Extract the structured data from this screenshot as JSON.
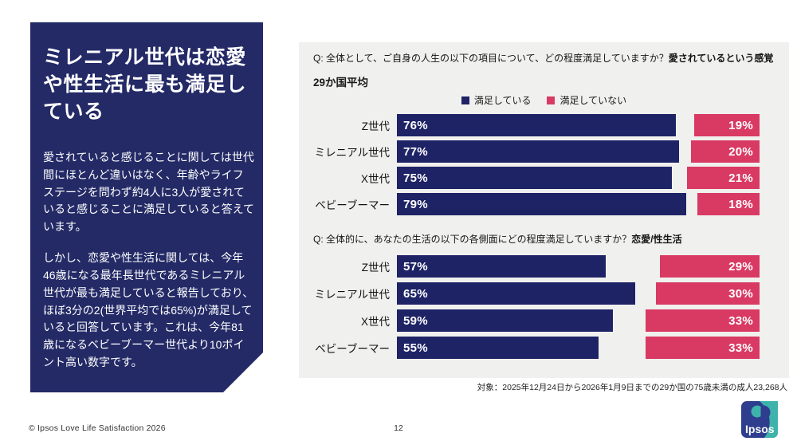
{
  "sidebar": {
    "title": "ミレニアル世代は恋愛や性生活に最も満足している",
    "paragraphs": [
      "愛されていると感じることに関しては世代間にほとんど違いはなく、年齢やライフステージを問わず約4人に3人が愛されていると感じることに満足していると答えています。",
      "しかし、恋愛や性生活に関しては、今年46歳になる最年長世代であるミレニアル世代が最も満足していると報告しており、ほぼ3分の2(世界平均では65%)が満足していると回答しています。これは、今年81歳になるベビーブーマー世代より10ポイント高い数字です。"
    ]
  },
  "panel": {
    "subtitle": "29か国平均",
    "legend": [
      {
        "label": "満足している",
        "color": "#1e2366"
      },
      {
        "label": "満足していない",
        "color": "#d93a63"
      }
    ]
  },
  "chart_data": [
    {
      "type": "bar",
      "orientation": "horizontal",
      "title": "Q: 全体として、ご自身の人生の以下の項目について、どの程度満足していますか？",
      "title_bold": "愛されているという感覚",
      "categories": [
        "Z世代",
        "ミレニアル世代",
        "X世代",
        "ベビーブーマー"
      ],
      "series": [
        {
          "name": "満足している",
          "color": "#1e2366",
          "values": [
            76,
            77,
            75,
            79
          ]
        },
        {
          "name": "満足していない",
          "color": "#d93a63",
          "values": [
            19,
            20,
            21,
            18
          ]
        }
      ],
      "unit": "%",
      "xlim": [
        0,
        100
      ],
      "legend_position": "top-center"
    },
    {
      "type": "bar",
      "orientation": "horizontal",
      "title": "Q: 全体的に、あなたの生活の以下の各側面にどの程度満足していますか？",
      "title_bold": "恋愛/性生活",
      "categories": [
        "Z世代",
        "ミレニアル世代",
        "X世代",
        "ベビーブーマー"
      ],
      "series": [
        {
          "name": "満足している",
          "color": "#1e2366",
          "values": [
            57,
            65,
            59,
            55
          ]
        },
        {
          "name": "満足していない",
          "color": "#d93a63",
          "values": [
            29,
            30,
            33,
            33
          ]
        }
      ],
      "unit": "%",
      "xlim": [
        0,
        100
      ],
      "legend_position": "none"
    }
  ],
  "footnote": "対象：2025年12月24日から2026年1月9日までの29か国の75歳未満の成人23,268人",
  "footer": {
    "copyright": "© Ipsos Love Life Satisfaction 2026",
    "page": "12",
    "logo_text": "Ipsos"
  },
  "colors": {
    "navy": "#1e2366",
    "navy_dark": "#232a66",
    "pink": "#d93a63",
    "panel_bg": "#f0f0ee",
    "logo_blue": "#2f3d8e",
    "logo_teal": "#3db3ab"
  }
}
